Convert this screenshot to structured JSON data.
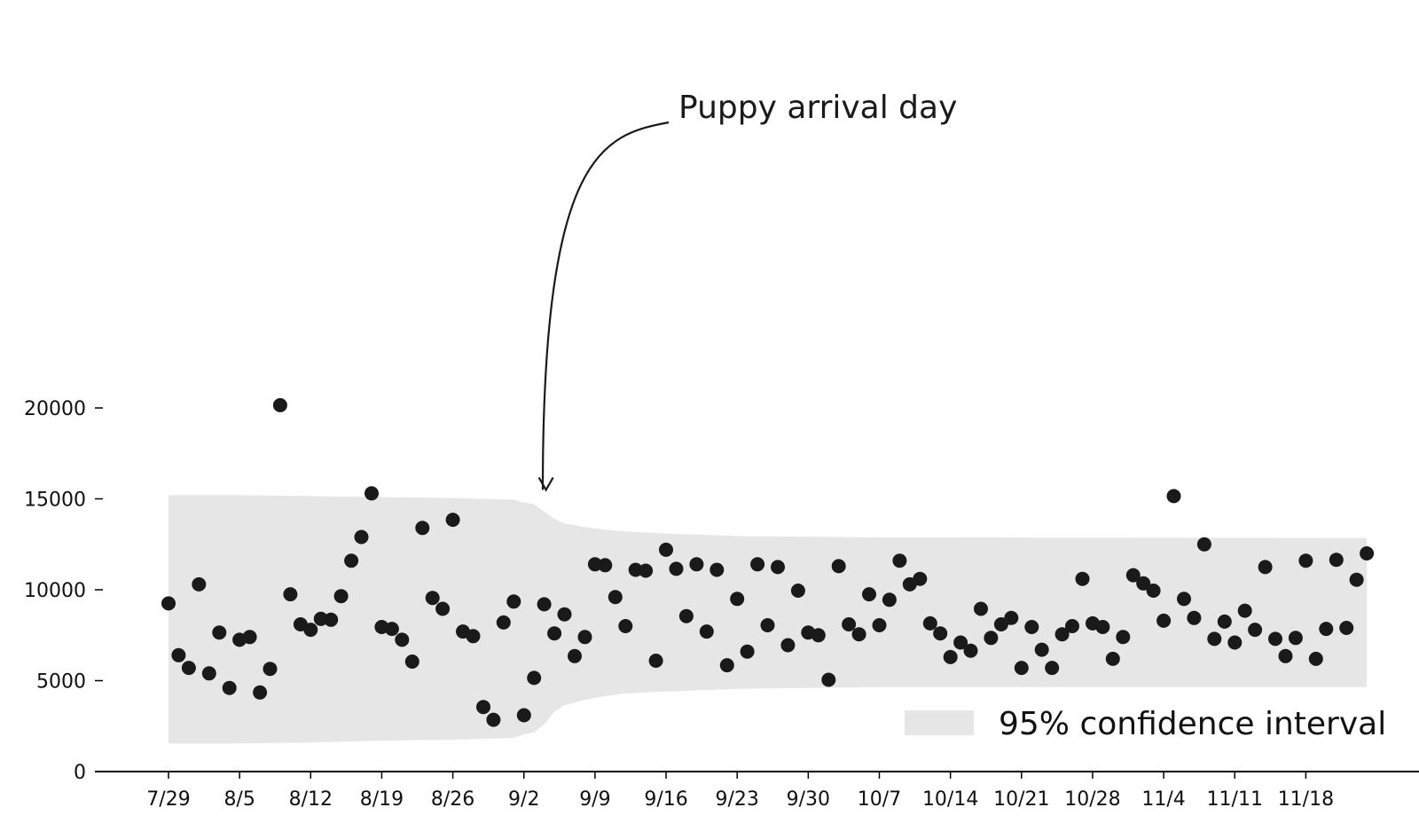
{
  "chart_data": {
    "type": "scatter",
    "title": "",
    "xlabel": "",
    "ylabel": "",
    "x_type": "date",
    "year": 2019,
    "xlim": [
      "2019-07-29",
      "2019-11-27"
    ],
    "ylim": [
      0,
      20000
    ],
    "y_ticks": [
      0,
      5000,
      10000,
      15000,
      20000
    ],
    "x_ticks": [
      "7/29",
      "8/5",
      "8/12",
      "8/19",
      "8/26",
      "9/2",
      "9/9",
      "9/16",
      "9/23",
      "9/30",
      "10/7",
      "10/14",
      "10/21",
      "10/28",
      "11/4",
      "11/11",
      "11/18"
    ],
    "grid": false,
    "colors": {
      "points": "#1a1a1a",
      "band": "#e6e6e6",
      "axis": "#000000"
    },
    "series": [
      {
        "type": "scatter",
        "points": [
          [
            "2019-07-29",
            9250
          ],
          [
            "2019-07-30",
            6400
          ],
          [
            "2019-07-31",
            5700
          ],
          [
            "2019-08-01",
            10300
          ],
          [
            "2019-08-02",
            5400
          ],
          [
            "2019-08-03",
            7650
          ],
          [
            "2019-08-04",
            4600
          ],
          [
            "2019-08-05",
            7250
          ],
          [
            "2019-08-06",
            7400
          ],
          [
            "2019-08-07",
            4350
          ],
          [
            "2019-08-08",
            5650
          ],
          [
            "2019-08-09",
            20150
          ],
          [
            "2019-08-10",
            9750
          ],
          [
            "2019-08-11",
            8100
          ],
          [
            "2019-08-12",
            7800
          ],
          [
            "2019-08-13",
            8400
          ],
          [
            "2019-08-14",
            8350
          ],
          [
            "2019-08-15",
            9650
          ],
          [
            "2019-08-16",
            11600
          ],
          [
            "2019-08-17",
            12900
          ],
          [
            "2019-08-18",
            15300
          ],
          [
            "2019-08-19",
            7950
          ],
          [
            "2019-08-20",
            7850
          ],
          [
            "2019-08-21",
            7250
          ],
          [
            "2019-08-22",
            6050
          ],
          [
            "2019-08-23",
            13400
          ],
          [
            "2019-08-24",
            9550
          ],
          [
            "2019-08-25",
            8950
          ],
          [
            "2019-08-26",
            13850
          ],
          [
            "2019-08-27",
            7700
          ],
          [
            "2019-08-28",
            7450
          ],
          [
            "2019-08-29",
            3550
          ],
          [
            "2019-08-30",
            2850
          ],
          [
            "2019-08-31",
            8200
          ],
          [
            "2019-09-01",
            9350
          ],
          [
            "2019-09-02",
            3100
          ],
          [
            "2019-09-03",
            5150
          ],
          [
            "2019-09-04",
            9200
          ],
          [
            "2019-09-05",
            7600
          ],
          [
            "2019-09-06",
            8650
          ],
          [
            "2019-09-07",
            6350
          ],
          [
            "2019-09-08",
            7400
          ],
          [
            "2019-09-09",
            11400
          ],
          [
            "2019-09-10",
            11350
          ],
          [
            "2019-09-11",
            9600
          ],
          [
            "2019-09-12",
            8000
          ],
          [
            "2019-09-13",
            11100
          ],
          [
            "2019-09-14",
            11050
          ],
          [
            "2019-09-15",
            6100
          ],
          [
            "2019-09-16",
            12200
          ],
          [
            "2019-09-17",
            11150
          ],
          [
            "2019-09-18",
            8550
          ],
          [
            "2019-09-19",
            11400
          ],
          [
            "2019-09-20",
            7700
          ],
          [
            "2019-09-21",
            11100
          ],
          [
            "2019-09-22",
            5850
          ],
          [
            "2019-09-23",
            9500
          ],
          [
            "2019-09-24",
            6600
          ],
          [
            "2019-09-25",
            11400
          ],
          [
            "2019-09-26",
            8050
          ],
          [
            "2019-09-27",
            11250
          ],
          [
            "2019-09-28",
            6950
          ],
          [
            "2019-09-29",
            9950
          ],
          [
            "2019-09-30",
            7650
          ],
          [
            "2019-10-01",
            7500
          ],
          [
            "2019-10-02",
            5050
          ],
          [
            "2019-10-03",
            11300
          ],
          [
            "2019-10-04",
            8100
          ],
          [
            "2019-10-05",
            7550
          ],
          [
            "2019-10-06",
            9750
          ],
          [
            "2019-10-07",
            8050
          ],
          [
            "2019-10-08",
            9450
          ],
          [
            "2019-10-09",
            11600
          ],
          [
            "2019-10-10",
            10300
          ],
          [
            "2019-10-11",
            10600
          ],
          [
            "2019-10-12",
            8150
          ],
          [
            "2019-10-13",
            7600
          ],
          [
            "2019-10-14",
            6300
          ],
          [
            "2019-10-15",
            7100
          ],
          [
            "2019-10-16",
            6650
          ],
          [
            "2019-10-17",
            8950
          ],
          [
            "2019-10-18",
            7350
          ],
          [
            "2019-10-19",
            8100
          ],
          [
            "2019-10-20",
            8450
          ],
          [
            "2019-10-21",
            5700
          ],
          [
            "2019-10-22",
            7950
          ],
          [
            "2019-10-23",
            6700
          ],
          [
            "2019-10-24",
            5700
          ],
          [
            "2019-10-25",
            7550
          ],
          [
            "2019-10-26",
            8000
          ],
          [
            "2019-10-27",
            10600
          ],
          [
            "2019-10-28",
            8150
          ],
          [
            "2019-10-29",
            7950
          ],
          [
            "2019-10-30",
            6200
          ],
          [
            "2019-10-31",
            7400
          ],
          [
            "2019-11-01",
            10800
          ],
          [
            "2019-11-02",
            10350
          ],
          [
            "2019-11-03",
            9950
          ],
          [
            "2019-11-04",
            8300
          ],
          [
            "2019-11-05",
            15150
          ],
          [
            "2019-11-06",
            9500
          ],
          [
            "2019-11-07",
            8450
          ],
          [
            "2019-11-08",
            12500
          ],
          [
            "2019-11-09",
            7300
          ],
          [
            "2019-11-10",
            8250
          ],
          [
            "2019-11-11",
            7100
          ],
          [
            "2019-11-12",
            8850
          ],
          [
            "2019-11-13",
            7800
          ],
          [
            "2019-11-14",
            11250
          ],
          [
            "2019-11-15",
            7300
          ],
          [
            "2019-11-16",
            6350
          ],
          [
            "2019-11-17",
            7350
          ],
          [
            "2019-11-18",
            11600
          ],
          [
            "2019-11-19",
            6200
          ],
          [
            "2019-11-20",
            7850
          ],
          [
            "2019-11-21",
            11650
          ],
          [
            "2019-11-22",
            7900
          ],
          [
            "2019-11-23",
            10550
          ],
          [
            "2019-11-24",
            12000
          ]
        ]
      },
      {
        "type": "area",
        "name": "95% confidence interval",
        "band": [
          [
            "2019-07-29",
            1550,
            15200
          ],
          [
            "2019-08-05",
            1550,
            15200
          ],
          [
            "2019-08-12",
            1600,
            15150
          ],
          [
            "2019-08-19",
            1700,
            15100
          ],
          [
            "2019-08-26",
            1750,
            15050
          ],
          [
            "2019-09-01",
            1850,
            14950
          ],
          [
            "2019-09-02",
            2050,
            14800
          ],
          [
            "2019-09-03",
            2150,
            14700
          ],
          [
            "2019-09-04",
            2600,
            14300
          ],
          [
            "2019-09-05",
            3300,
            13900
          ],
          [
            "2019-09-06",
            3650,
            13650
          ],
          [
            "2019-09-08",
            3950,
            13450
          ],
          [
            "2019-09-10",
            4150,
            13300
          ],
          [
            "2019-09-12",
            4300,
            13200
          ],
          [
            "2019-09-16",
            4400,
            13100
          ],
          [
            "2019-09-23",
            4550,
            12950
          ],
          [
            "2019-10-07",
            4650,
            12880
          ],
          [
            "2019-11-24",
            4650,
            12850
          ]
        ]
      }
    ],
    "annotations": [
      {
        "text": "Puppy arrival day",
        "date": "2019-09-04",
        "y": 15200
      }
    ],
    "legend": {
      "position": "bottom-right",
      "entries": [
        "95% confidence interval"
      ]
    }
  }
}
